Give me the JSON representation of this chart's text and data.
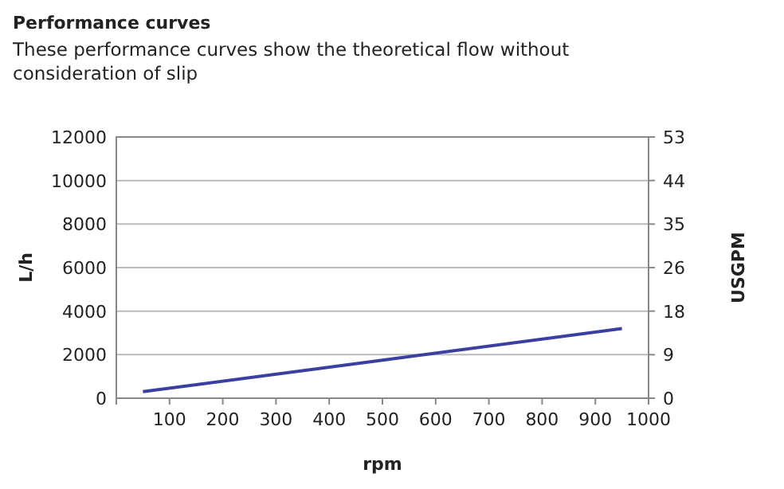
{
  "chart_data": {
    "type": "line",
    "title": "Performance curves",
    "subtitle": "These performance curves show the theoretical flow without consideration of slip",
    "xlabel": "rpm",
    "ylabel": "L/h",
    "y2label": "USGPM",
    "x": [
      50,
      500,
      950
    ],
    "series": [
      {
        "color": "#3b3fa0",
        "values": [
          300,
          1750,
          3200
        ]
      }
    ],
    "xlim": [
      0,
      1000
    ],
    "xticks": [
      {
        "value": 0,
        "label": null
      },
      100,
      200,
      300,
      400,
      500,
      600,
      700,
      800,
      900,
      1000
    ],
    "ylim": [
      0,
      12000
    ],
    "yticks": [
      0,
      2000,
      4000,
      6000,
      8000,
      10000,
      12000
    ],
    "y2lim": [
      0,
      53
    ],
    "y2ticks": [
      0,
      {
        "value": 8.83,
        "label": "9"
      },
      {
        "value": 17.67,
        "label": "18"
      },
      {
        "value": 26.5,
        "label": "26"
      },
      {
        "value": 35.33,
        "label": "35"
      },
      {
        "value": 44.17,
        "label": "44"
      },
      53
    ],
    "grid": "y",
    "marker": "none",
    "line_style": "solid"
  }
}
